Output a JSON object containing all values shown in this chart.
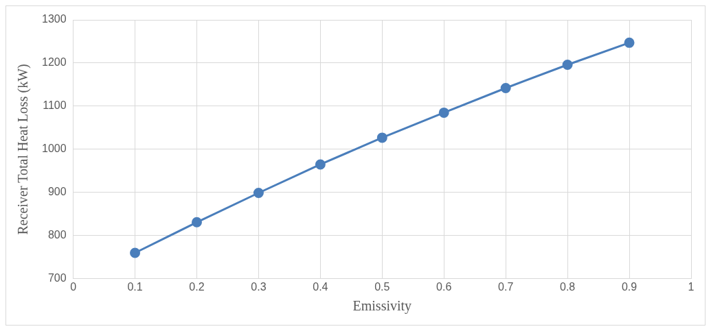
{
  "chart_data": {
    "type": "line",
    "xlabel": "Emissivity",
    "ylabel": "Receiver Total Heat Loss (kW)",
    "x": [
      0.1,
      0.2,
      0.3,
      0.4,
      0.5,
      0.6,
      0.7,
      0.8,
      0.9
    ],
    "series": [
      {
        "color": "#4a7ebb",
        "values": [
          760,
          831,
          899,
          965,
          1027,
          1085,
          1142,
          1196,
          1247
        ]
      }
    ],
    "xlim": [
      0,
      1
    ],
    "xticks": [
      0,
      0.1,
      0.2,
      0.3,
      0.4,
      0.5,
      0.6,
      0.7,
      0.8,
      0.9,
      1
    ],
    "ylim": [
      700,
      1300
    ],
    "yticks": [
      700,
      800,
      900,
      1000,
      1100,
      1200,
      1300
    ],
    "grid": true,
    "legend": false,
    "marker": "circle",
    "line_style": "solid"
  }
}
